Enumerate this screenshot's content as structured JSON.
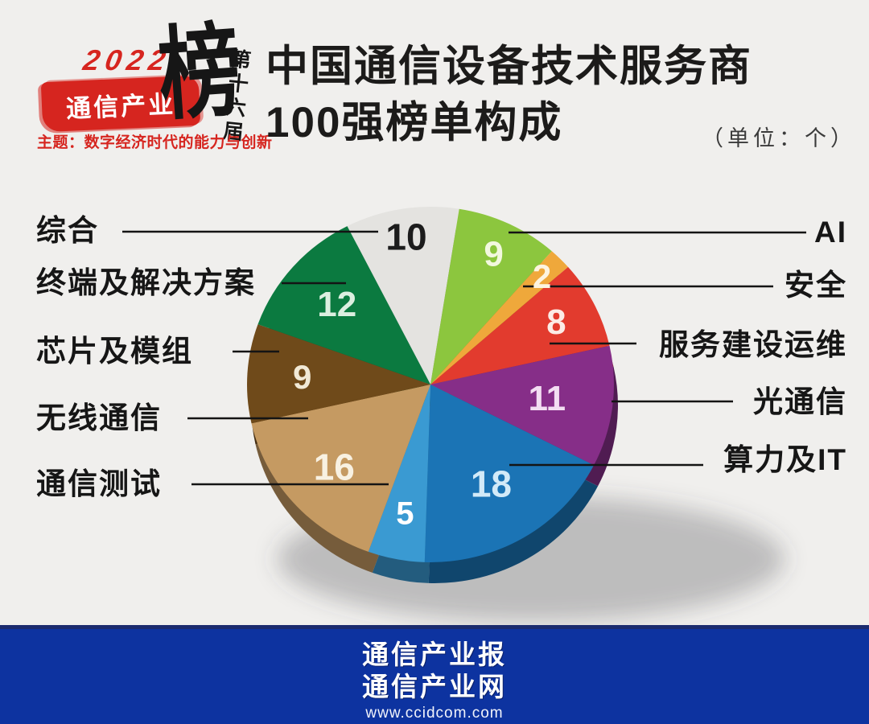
{
  "page": {
    "background": "#f0efed"
  },
  "logo": {
    "year": "2022",
    "brand": "通信产业",
    "bang": "榜",
    "edition": "第十六届",
    "theme": "主题：数字经济时代的能力与创新",
    "accent_color": "#d6251f"
  },
  "title": {
    "line1": "中国通信设备技术服务商",
    "line2": "100强榜单构成",
    "unit_note": "（单位：个）"
  },
  "chart_data": {
    "type": "pie",
    "title": "中国通信设备技术服务商100强榜单构成",
    "unit": "个",
    "total": 100,
    "style": "3d-pie",
    "direction": "clockwise",
    "start_angle_deg": -27,
    "slices": [
      {
        "label": "综合",
        "value": 10,
        "color": "#e4e3e0",
        "number_color": "#1c1c1c",
        "label_side": "left"
      },
      {
        "label": "AI",
        "value": 9,
        "color": "#8cc63e",
        "number_color": "#f2f8df",
        "label_side": "right"
      },
      {
        "label": "安全",
        "value": 2,
        "color": "#efa83b",
        "number_color": "#fdf4e0",
        "label_side": "right"
      },
      {
        "label": "服务建设运维",
        "value": 8,
        "color": "#e23b2e",
        "number_color": "#fcebe6",
        "label_side": "right"
      },
      {
        "label": "光通信",
        "value": 11,
        "color": "#862e88",
        "number_color": "#f3ddf2",
        "label_side": "right"
      },
      {
        "label": "算力及IT",
        "value": 18,
        "color": "#1b74b5",
        "number_color": "#d2eaf8",
        "label_side": "right"
      },
      {
        "label": "通信测试",
        "value": 5,
        "color": "#3a9ad2",
        "number_color": "#ffffff",
        "label_side": "left"
      },
      {
        "label": "无线通信",
        "value": 16,
        "color": "#c59a62",
        "number_color": "#f8f1e2",
        "label_side": "left"
      },
      {
        "label": "芯片及模组",
        "value": 9,
        "color": "#6f4a1a",
        "number_color": "#f1e9d6",
        "label_side": "left"
      },
      {
        "label": "终端及解决方案",
        "value": 12,
        "color": "#0b7a40",
        "number_color": "#dcefe0",
        "label_side": "left"
      }
    ]
  },
  "footer": {
    "line1": "通信产业报",
    "line2": "通信产业网",
    "url": "www.ccidcom.com",
    "background": "#0d33a0"
  }
}
